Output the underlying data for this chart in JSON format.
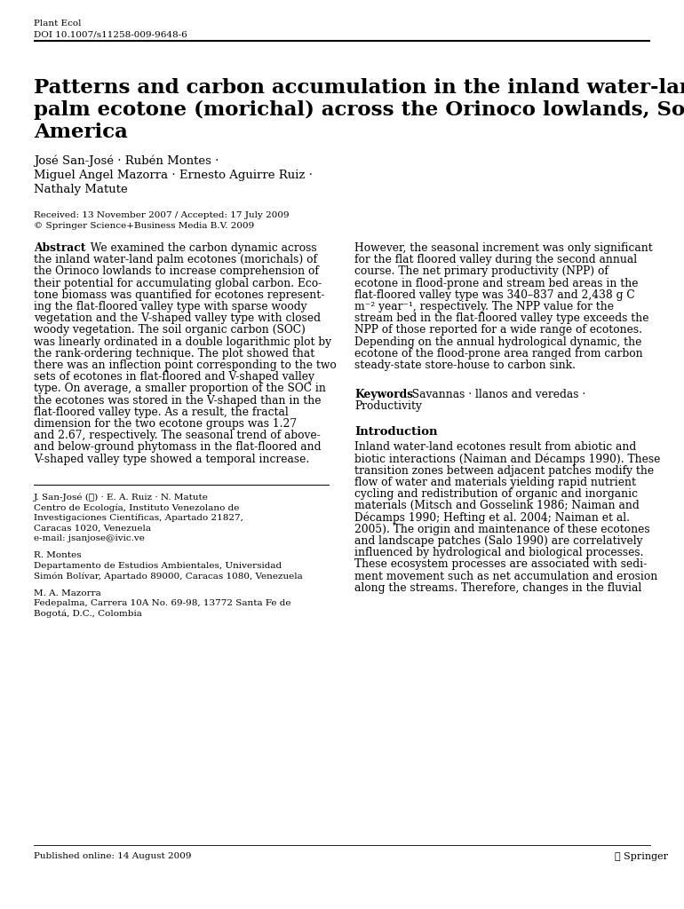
{
  "bg_color": "#ffffff",
  "header_journal": "Plant Ecol",
  "header_doi": "DOI 10.1007/s11258-009-9648-6",
  "title_line1": "Patterns and carbon accumulation in the inland water-land",
  "title_line2": "palm ecotone (morichal) across the Orinoco lowlands, South",
  "title_line3": "America",
  "authors_line1": "José San-José · Rubén Montes ·",
  "authors_line2": "Miguel Angel Mazorra · Ernesto Aguirre Ruiz ·",
  "authors_line3": "Nathaly Matute",
  "received": "Received: 13 November 2007 / Accepted: 17 July 2009",
  "copyright": "© Springer Science+Business Media B.V. 2009",
  "left_abstract_lines": [
    "We examined the carbon dynamic across",
    "the inland water-land palm ecotones (morichals) of",
    "the Orinoco lowlands to increase comprehension of",
    "their potential for accumulating global carbon. Eco-",
    "tone biomass was quantified for ecotones represent-",
    "ing the flat-floored valley type with sparse woody",
    "vegetation and the V-shaped valley type with closed",
    "woody vegetation. The soil organic carbon (SOC)",
    "was linearly ordinated in a double logarithmic plot by",
    "the rank-ordering technique. The plot showed that",
    "there was an inflection point corresponding to the two",
    "sets of ecotones in flat-floored and V-shaped valley",
    "type. On average, a smaller proportion of the SOC in",
    "the ecotones was stored in the V-shaped than in the",
    "flat-floored valley type. As a result, the fractal",
    "dimension for the two ecotone groups was 1.27",
    "and 2.67, respectively. The seasonal trend of above-",
    "and below-ground phytomass in the flat-floored and",
    "V-shaped valley type showed a temporal increase."
  ],
  "right_abstract_lines": [
    "However, the seasonal increment was only significant",
    "for the flat floored valley during the second annual",
    "course. The net primary productivity (NPP) of",
    "ecotone in flood-prone and stream bed areas in the",
    "flat-floored valley type was 340–837 and 2,438 g C",
    "m⁻² year⁻¹, respectively. The NPP value for the",
    "stream bed in the flat-floored valley type exceeds the",
    "NPP of those reported for a wide range of ecotones.",
    "Depending on the annual hydrological dynamic, the",
    "ecotone of the flood-prone area ranged from carbon",
    "steady-state store-house to carbon sink."
  ],
  "keywords_line1": "Savannas · llanos and veredas ·",
  "keywords_line2": "Productivity",
  "intro_lines": [
    "Inland water-land ecotones result from abiotic and",
    "biotic interactions (Naiman and Décamps 1990). These",
    "transition zones between adjacent patches modify the",
    "flow of water and materials yielding rapid nutrient",
    "cycling and redistribution of organic and inorganic",
    "materials (Mitsch and Gosselink 1986; Naiman and",
    "Décamps 1990; Hefting et al. 2004; Naiman et al.",
    "2005). The origin and maintenance of these ecotones",
    "and landscape patches (Salo 1990) are correlatively",
    "influenced by hydrological and biological processes.",
    "These ecosystem processes are associated with sedi-",
    "ment movement such as net accumulation and erosion",
    "along the streams. Therefore, changes in the fluvial"
  ],
  "footnote1_name": "J. San-José (✉) · E. A. Ruiz · N. Matute",
  "footnote1_inst": "Centro de Ecología, Instituto Venezolano de",
  "footnote1_inst2": "Investigaciones Científicas, Apartado 21827,",
  "footnote1_city": "Caracas 1020, Venezuela",
  "footnote1_email": "e-mail: jsanjose@ivic.ve",
  "footnote2_name": "R. Montes",
  "footnote2_inst": "Departamento de Estudios Ambientales, Universidad",
  "footnote2_inst2": "Simón Bolívar, Apartado 89000, Caracas 1080, Venezuela",
  "footnote3_name": "M. A. Mazorra",
  "footnote3_inst": "Fedepalma, Carrera 10A No. 69-98, 13772 Santa Fe de",
  "footnote3_inst2": "Bogotá, D.C., Colombia",
  "published": "Published online: 14 August 2009",
  "springer_symbol": "⚆ Springer"
}
